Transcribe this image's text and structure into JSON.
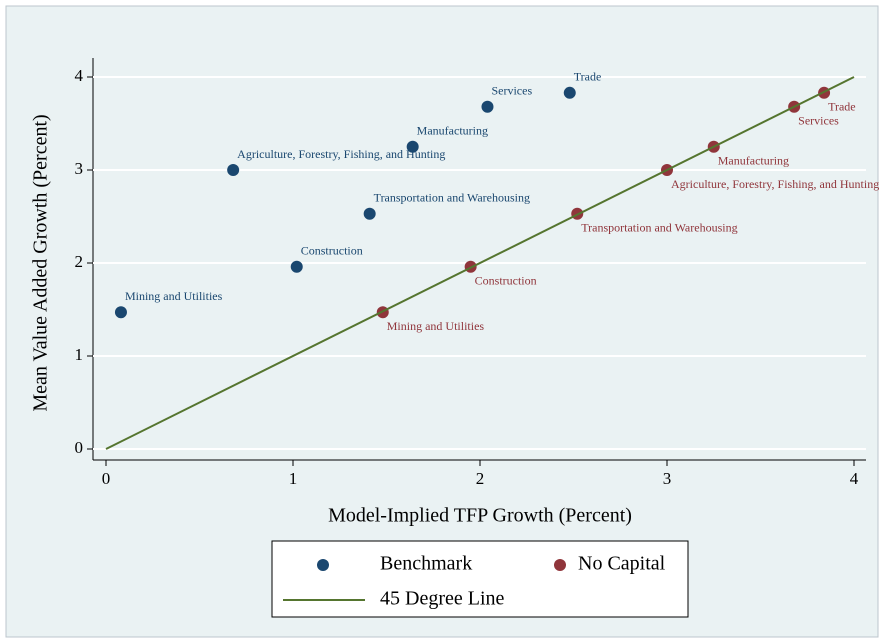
{
  "chart_data": {
    "type": "scatter",
    "x_label": "Model-Implied TFP Growth (Percent)",
    "y_label": "Mean Value Added Growth (Percent)",
    "xlim": [
      0,
      4
    ],
    "ylim": [
      0,
      4
    ],
    "xticks": [
      0,
      1,
      2,
      3,
      4
    ],
    "yticks": [
      0,
      1,
      2,
      3,
      4
    ],
    "grid": true,
    "legend": "bottom",
    "series": [
      {
        "name": "Benchmark",
        "color": "#1a476f",
        "label_position": "above",
        "labels": [
          "Mining and Utilities",
          "Agriculture, Forestry, Fishing, and Hunting",
          "Construction",
          "Transportation and Warehousing",
          "Manufacturing",
          "Services",
          "Trade"
        ],
        "x": [
          0.08,
          0.68,
          1.02,
          1.41,
          1.64,
          2.04,
          2.48
        ],
        "y": [
          1.47,
          3.0,
          1.96,
          2.53,
          3.25,
          3.68,
          3.83
        ]
      },
      {
        "name": "No Capital",
        "color": "#90353b",
        "label_position": "below",
        "labels": [
          "Mining and Utilities",
          "Construction",
          "Transportation and Warehousing",
          "Agriculture, Forestry, Fishing, and Hunting",
          "Manufacturing",
          "Services",
          "Trade"
        ],
        "x": [
          1.48,
          1.95,
          2.52,
          3.0,
          3.25,
          3.68,
          3.84
        ],
        "y": [
          1.47,
          1.96,
          2.53,
          3.0,
          3.25,
          3.68,
          3.83
        ]
      },
      {
        "name": "45 Degree Line",
        "color": "#55752f",
        "kind": "line",
        "x": [
          0,
          4
        ],
        "y": [
          0,
          4
        ]
      }
    ]
  }
}
